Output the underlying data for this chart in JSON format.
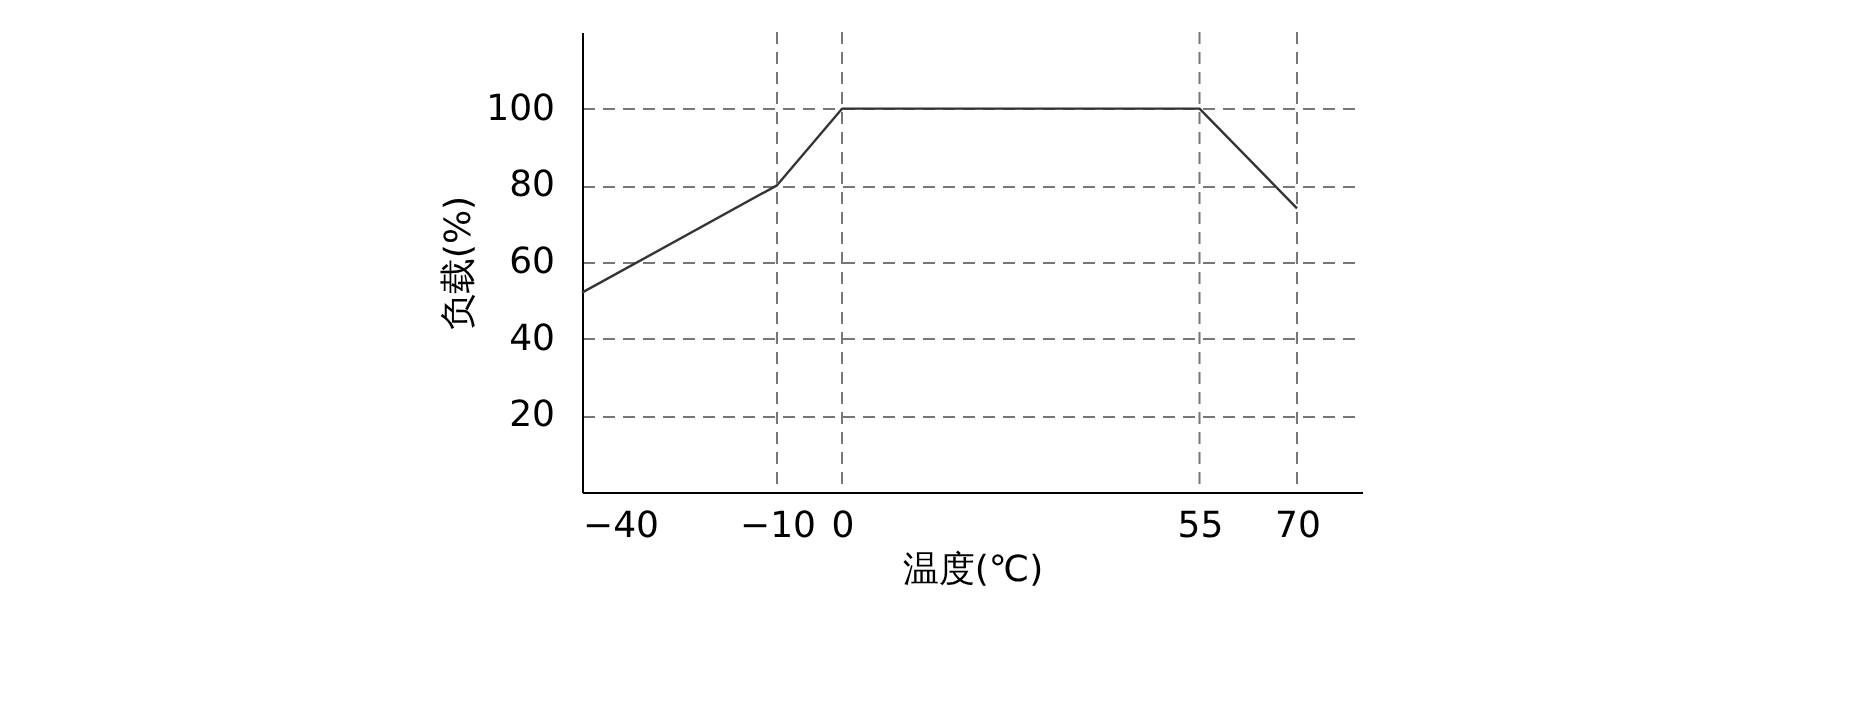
{
  "chart_data": {
    "type": "line",
    "xlabel": "温度(℃)",
    "ylabel": "负载(%)",
    "x": [
      -40,
      -10,
      0,
      55,
      70
    ],
    "series": [
      {
        "color": "#333333",
        "values": [
          52,
          80,
          100,
          100,
          74
        ]
      }
    ],
    "xlim": [
      -40,
      80
    ],
    "xticks": [
      -40,
      -10,
      0,
      55,
      70
    ],
    "ylim": [
      0,
      120
    ],
    "yticks": [
      20,
      40,
      60,
      80,
      100
    ],
    "grid": "y",
    "marker": "none",
    "line_style": "solid",
    "ref_lines": [
      {
        "axis": "x",
        "value": -10,
        "color": "#777777",
        "line_style": "dashed"
      },
      {
        "axis": "x",
        "value": 0,
        "color": "#777777",
        "line_style": "dashed"
      },
      {
        "axis": "x",
        "value": 55,
        "color": "#777777",
        "line_style": "dashed"
      },
      {
        "axis": "x",
        "value": 70,
        "color": "#777777",
        "line_style": "dashed"
      }
    ]
  }
}
